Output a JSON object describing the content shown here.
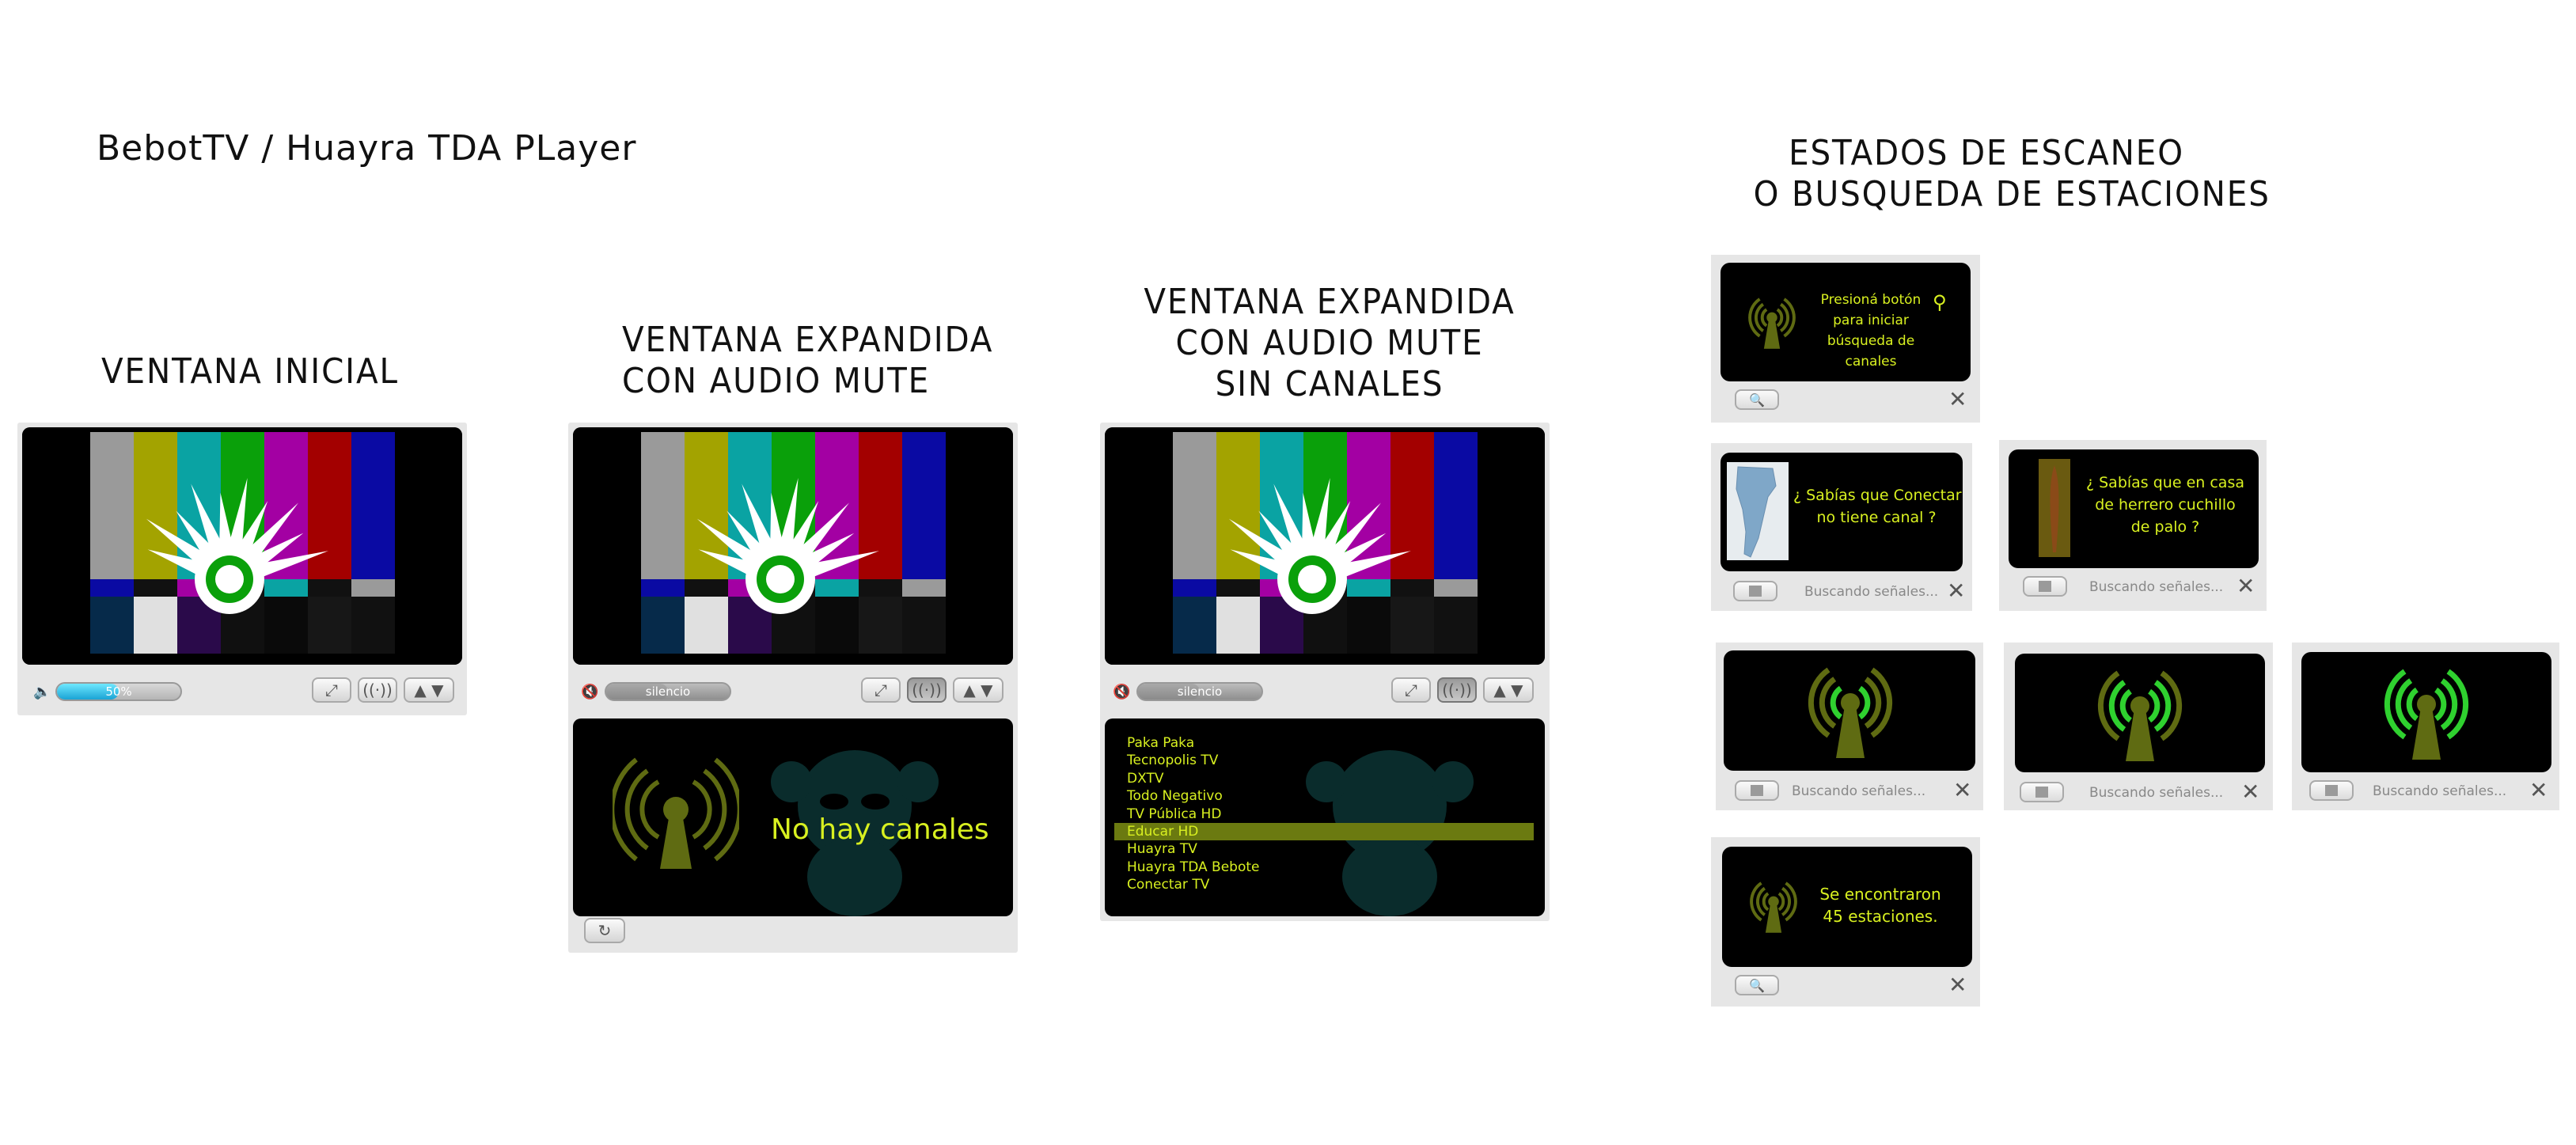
{
  "page_title": "BebotTV / Huayra TDA PLayer",
  "scan_heading": "ESTADOS DE ESCANEO\nO BUSQUEDA DE ESTACIONES",
  "section_initial": "VENTANA INICIAL",
  "section_expanded_mute": "VENTANA EXPANDIDA\nCON AUDIO MUTE",
  "section_expanded_no_channels": "VENTANA EXPANDIDA\nCON AUDIO MUTE\nSIN CANALES",
  "player_initial": {
    "volume_label": "50%",
    "volume_level": 0.5
  },
  "player_mute": {
    "volume_label": "silencio"
  },
  "no_channels_text": "No hay canales",
  "channels": [
    "Paka Paka",
    "Tecnopolis TV",
    "DXTV",
    "Todo Negativo",
    "TV Pública HD",
    "Educar HD",
    "Huayra TV",
    "Huayra TDA Bebote",
    "Conectar TV"
  ],
  "selected_channel": "Educar HD",
  "scan": {
    "start_text": "Presioná botón\npara iniciar\nbúsqueda de\ncanales",
    "fact1": "¿ Sabías que Conectar\nno tiene canal ?",
    "fact2": "¿ Sabías que en casa\nde herrero cuchillo\nde palo ?",
    "searching": "Buscando señales...",
    "found": "Se encontraron\n45 estaciones."
  },
  "colors": {
    "accent_text": "#d8f020",
    "antenna_dim": "#5f6b12",
    "antenna_green": "#2fd12f",
    "selection": "#6b7a10"
  }
}
